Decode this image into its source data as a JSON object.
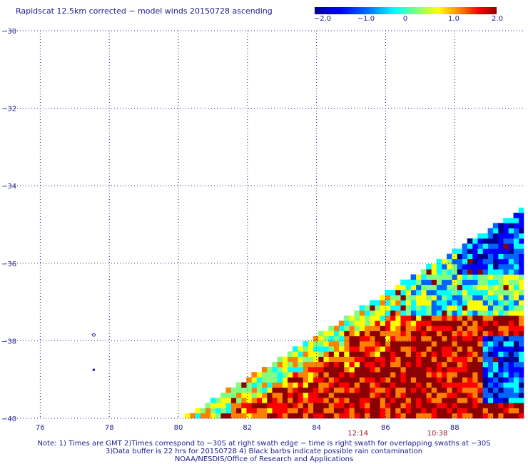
{
  "title": "Rapidscat 12.5km corrected − model winds 20150728 ascending",
  "colorbar": {
    "labels": [
      "−2.0",
      "−1.0",
      "0",
      "1.0",
      "2.0"
    ],
    "values": [
      -2.0,
      -1.0,
      0,
      1.0,
      2.0
    ],
    "colors": [
      "#00008b",
      "#0000ff",
      "#0064ff",
      "#00ffff",
      "#80ff80",
      "#ffff00",
      "#ff8000",
      "#ff0000",
      "#8b0000"
    ]
  },
  "map": {
    "lon_range": [
      75,
      90
    ],
    "lat_range": [
      -40,
      -30
    ],
    "lon_ticks": [
      "76",
      "78",
      "80",
      "82",
      "84",
      "86",
      "88"
    ],
    "lon_tick_values": [
      76,
      78,
      80,
      82,
      84,
      86,
      88
    ],
    "lat_ticks": [
      "−30",
      "−32",
      "−34",
      "−36",
      "−38",
      "−40"
    ],
    "lat_tick_values": [
      -30,
      -32,
      -34,
      -36,
      -38,
      -40
    ],
    "grid": "dotted",
    "swath_times": [
      {
        "label": "12:14",
        "lon": 85.2
      },
      {
        "label": "10:38",
        "lon": 87.5
      }
    ],
    "island_markers": [
      {
        "lon": 77.55,
        "lat": -37.85
      },
      {
        "lon": 77.55,
        "lat": -38.75
      }
    ]
  },
  "notes": [
    "Note: 1) Times are GMT 2)Times correspond to −30S at right swath edge − time is right swath for overlapping swaths at −30S",
    "3)Data buffer is 22 hrs for 20150728 4) Black barbs indicate possible rain contamination",
    "NOAA/NESDIS/Office of Research and Applications"
  ]
}
